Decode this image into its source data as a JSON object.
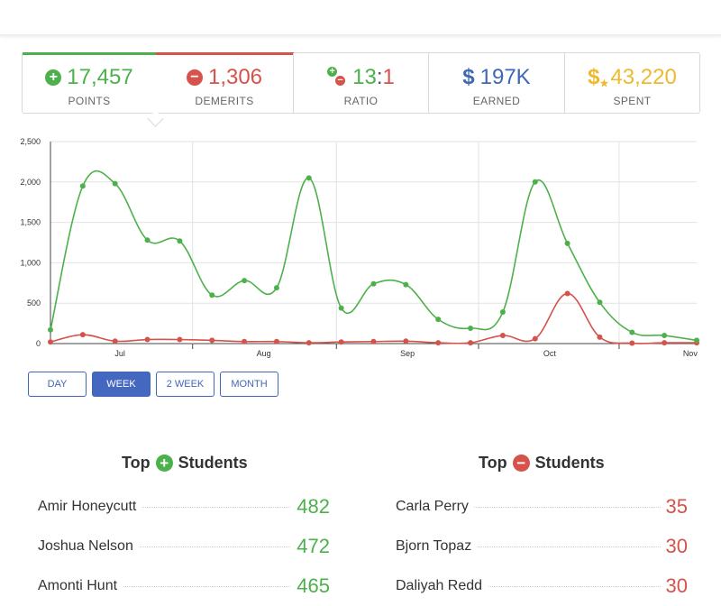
{
  "stats": [
    {
      "id": "points",
      "icon": "plus-circle-icon",
      "glyph": "+",
      "value": "17,457",
      "label": "POINTS",
      "color": "#4db14b"
    },
    {
      "id": "demerits",
      "icon": "minus-circle-icon",
      "glyph": "−",
      "value": "1,306",
      "label": "DEMERITS",
      "color": "#d5534b"
    },
    {
      "id": "ratio",
      "icon": "ratio-icon",
      "value_a": "13",
      "value_sep": ":",
      "value_b": "1",
      "label": "RATIO"
    },
    {
      "id": "earned",
      "icon": "dollar-icon",
      "glyph": "$",
      "value": "197K",
      "label": "EARNED",
      "color": "#3f67b5"
    },
    {
      "id": "spent",
      "icon": "dollar-star-icon",
      "glyph": "$",
      "value": "43,220",
      "label": "SPENT",
      "color": "#ecb92f"
    }
  ],
  "chart_data": {
    "type": "line",
    "y_ticks": [
      "0",
      "500",
      "1,000",
      "1,500",
      "2,000",
      "2,500"
    ],
    "ylim": [
      0,
      2500
    ],
    "x_month_labels": [
      "Jul",
      "Aug",
      "Sep",
      "Oct",
      "Nov"
    ],
    "grid": true,
    "series": [
      {
        "color": "#4db14b",
        "values": [
          170,
          1950,
          1980,
          1280,
          1270,
          600,
          780,
          690,
          2050,
          440,
          740,
          730,
          300,
          190,
          390,
          2000,
          1240,
          510,
          140,
          100,
          40
        ]
      },
      {
        "color": "#d5534b",
        "values": [
          20,
          110,
          30,
          50,
          50,
          40,
          25,
          25,
          10,
          20,
          25,
          30,
          10,
          10,
          100,
          60,
          620,
          80,
          5,
          10,
          10
        ]
      }
    ]
  },
  "ranges": {
    "day": "DAY",
    "week": "WEEK",
    "two_week": "2 WEEK",
    "month": "MONTH",
    "active": "week"
  },
  "top_positive": {
    "title_pre": "Top",
    "title_post": "Students",
    "students": [
      {
        "name": "Amir Honeycutt",
        "score": "482"
      },
      {
        "name": "Joshua Nelson",
        "score": "472"
      },
      {
        "name": "Amonti Hunt",
        "score": "465"
      }
    ]
  },
  "top_negative": {
    "title_pre": "Top",
    "title_post": "Students",
    "students": [
      {
        "name": "Carla Perry",
        "score": "35"
      },
      {
        "name": "Bjorn Topaz",
        "score": "30"
      },
      {
        "name": "Daliyah Redd",
        "score": "30"
      }
    ]
  }
}
